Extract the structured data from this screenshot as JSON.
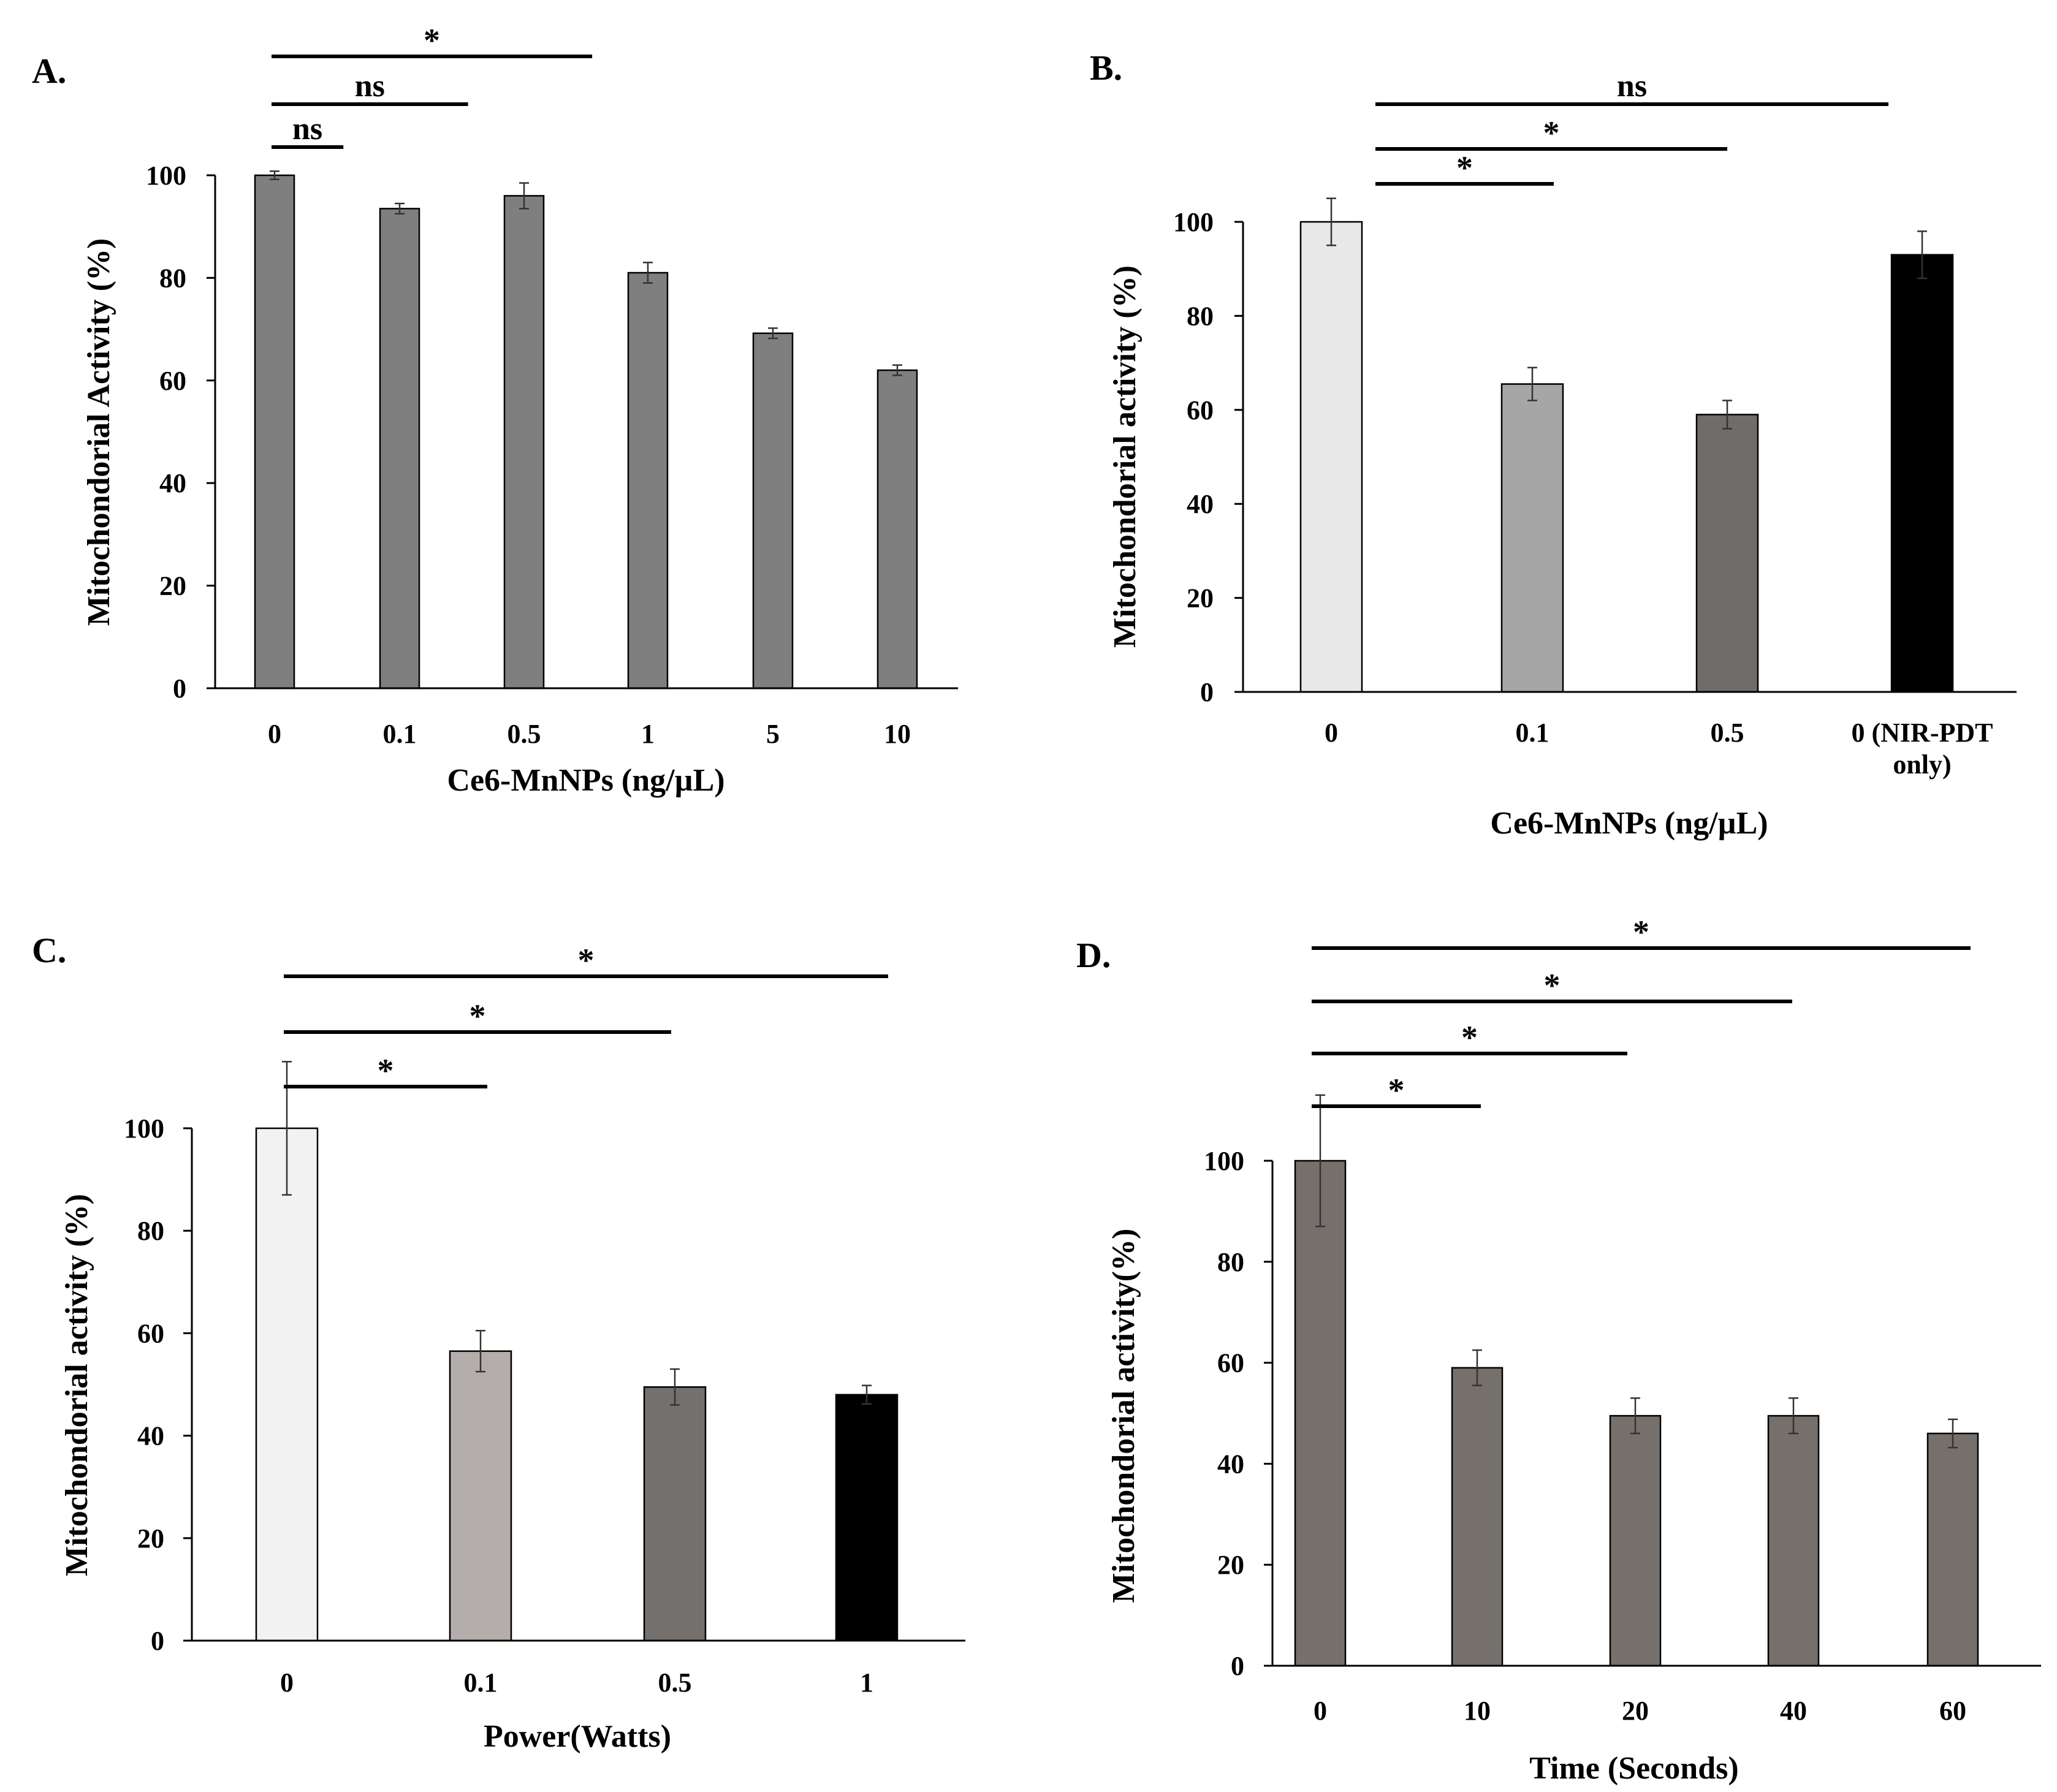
{
  "chart_data": [
    {
      "panel_label": "A.",
      "type": "bar",
      "categories": [
        "0",
        "0.1",
        "0.5",
        "1",
        "5",
        "10"
      ],
      "values": [
        100,
        93.5,
        96,
        81,
        69.2,
        62
      ],
      "errors": [
        0.8,
        1,
        2.5,
        2,
        1,
        1
      ],
      "bar_colors": [
        "#7f7f7f",
        "#7f7f7f",
        "#7f7f7f",
        "#7f7f7f",
        "#7f7f7f",
        "#7f7f7f"
      ],
      "ylim": [
        0,
        100
      ],
      "yticks": [
        0,
        20,
        40,
        60,
        80,
        100
      ],
      "xlabel": "Ce6-MnNPs (ng/µL)",
      "ylabel": "Mitochondorial Activity (%)",
      "significance": [
        {
          "from": 0,
          "to": 1,
          "label": "ns"
        },
        {
          "from": 0,
          "to": 2,
          "label": "ns"
        },
        {
          "from": 0,
          "to": 3,
          "label": "*"
        }
      ]
    },
    {
      "panel_label": "B.",
      "type": "bar",
      "categories": [
        "0",
        "0.1",
        "0.5",
        "0 (NIR-PDT only)"
      ],
      "values": [
        100,
        65.5,
        59,
        93
      ],
      "errors": [
        5,
        3.5,
        3,
        5
      ],
      "bar_colors": [
        "#e8e8e8",
        "#a6a6a6",
        "#706c6a",
        "#000000"
      ],
      "ylim": [
        0,
        100
      ],
      "yticks": [
        0,
        20,
        40,
        60,
        80,
        100
      ],
      "xlabel": "Ce6-MnNPs (ng/µL)",
      "ylabel": "Mitochondorial activity (%)",
      "significance": [
        {
          "from": 0,
          "to": 1,
          "label": "*"
        },
        {
          "from": 0,
          "to": 2,
          "label": "*"
        },
        {
          "from": 0,
          "to": 3,
          "label": "ns"
        }
      ]
    },
    {
      "panel_label": "C.",
      "type": "bar",
      "categories": [
        "0",
        "0.1",
        "0.5",
        "1"
      ],
      "values": [
        100,
        56.5,
        49.5,
        48
      ],
      "errors": [
        13,
        4,
        3.5,
        1.8
      ],
      "bar_colors": [
        "#f2f2f2",
        "#b3aeab",
        "#73706d",
        "#000000"
      ],
      "ylim": [
        0,
        100
      ],
      "yticks": [
        0,
        20,
        40,
        60,
        80,
        100
      ],
      "xlabel": "Power(Watts)",
      "ylabel": "Mitochondorial activity (%)",
      "significance": [
        {
          "from": 0,
          "to": 1,
          "label": "*"
        },
        {
          "from": 0,
          "to": 2,
          "label": "*"
        },
        {
          "from": 0,
          "to": 3,
          "label": "*"
        }
      ]
    },
    {
      "panel_label": "D.",
      "type": "bar",
      "categories": [
        "0",
        "10",
        "20",
        "40",
        "60"
      ],
      "values": [
        100,
        59,
        49.5,
        49.5,
        46
      ],
      "errors": [
        13,
        3.5,
        3.5,
        3.5,
        2.8
      ],
      "bar_colors": [
        "#76706d",
        "#76706d",
        "#76706d",
        "#76706d",
        "#76706d"
      ],
      "ylim": [
        0,
        100
      ],
      "yticks": [
        0,
        20,
        40,
        60,
        80,
        100
      ],
      "xlabel": "Time (Seconds)",
      "ylabel": "Mitochondorial activity(%)",
      "significance": [
        {
          "from": 0,
          "to": 1,
          "label": "*"
        },
        {
          "from": 0,
          "to": 2,
          "label": "*"
        },
        {
          "from": 0,
          "to": 3,
          "label": "*"
        },
        {
          "from": 0,
          "to": 4,
          "label": "*"
        }
      ]
    }
  ]
}
